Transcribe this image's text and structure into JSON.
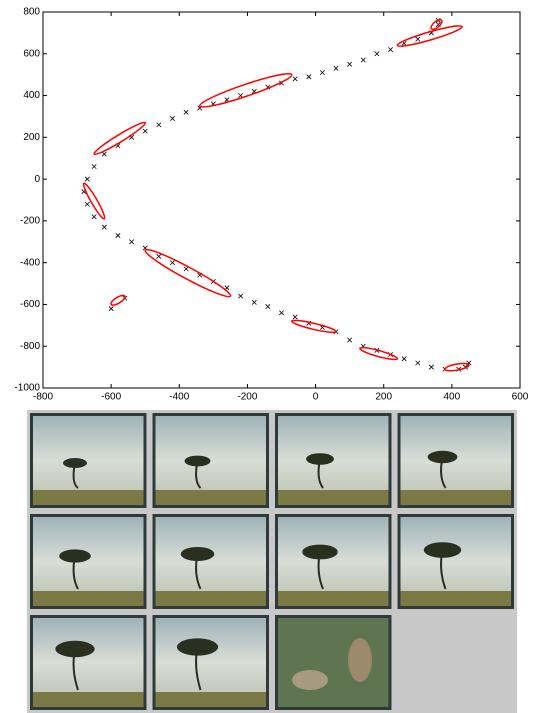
{
  "chart_data": {
    "type": "scatter",
    "xlim": [
      -800,
      600
    ],
    "ylim": [
      -1000,
      800
    ],
    "xticks": [
      -800,
      -600,
      -400,
      -200,
      0,
      200,
      400,
      600
    ],
    "yticks": [
      -1000,
      -800,
      -600,
      -400,
      -200,
      0,
      200,
      400,
      600,
      800
    ],
    "series": [
      {
        "color": "#000000",
        "x": [
          340,
          300,
          260,
          220,
          180,
          140,
          100,
          60,
          20,
          -20,
          -60,
          -100,
          -140,
          -180,
          -220,
          -260,
          -300,
          -340,
          -380,
          -420,
          -460,
          -500,
          -540,
          -580,
          -620,
          -650,
          -670,
          -680,
          -670,
          -650,
          -620,
          -580,
          -540,
          -500,
          -460,
          -420,
          -380,
          -340,
          -300,
          -260,
          -220,
          -180,
          -140,
          -100,
          -60,
          -20,
          20,
          60,
          100,
          140,
          180,
          220,
          260,
          300,
          340,
          380,
          420,
          450,
          440,
          360,
          360,
          -600,
          -560
        ],
        "values": [
          700,
          670,
          650,
          620,
          600,
          570,
          550,
          530,
          510,
          490,
          480,
          460,
          440,
          420,
          400,
          380,
          360,
          340,
          320,
          290,
          260,
          230,
          200,
          160,
          120,
          60,
          0,
          -60,
          -120,
          -180,
          -230,
          -270,
          -300,
          -330,
          -370,
          -400,
          -430,
          -460,
          -490,
          -520,
          -560,
          -590,
          -610,
          -640,
          -660,
          -690,
          -710,
          -730,
          -770,
          -800,
          -820,
          -840,
          -860,
          -880,
          -900,
          -910,
          -910,
          -880,
          -900,
          760,
          740,
          -620,
          -570
        ]
      }
    ],
    "ellipses": {
      "color": "#ff0000",
      "items": [
        {
          "x": [
            240,
            430
          ],
          "y": [
            640,
            730
          ]
        },
        {
          "x": [
            -340,
            -70
          ],
          "y": [
            350,
            500
          ]
        },
        {
          "x": [
            -650,
            -500
          ],
          "y": [
            120,
            270
          ]
        },
        {
          "x": [
            -680,
            -620
          ],
          "y": [
            -20,
            -190
          ]
        },
        {
          "x": [
            -500,
            -250
          ],
          "y": [
            -340,
            -560
          ]
        },
        {
          "x": [
            -600,
            -560
          ],
          "y": [
            -600,
            -560
          ]
        },
        {
          "x": [
            -70,
            60
          ],
          "y": [
            -680,
            -730
          ]
        },
        {
          "x": [
            130,
            240
          ],
          "y": [
            -810,
            -860
          ]
        },
        {
          "x": [
            380,
            450
          ],
          "y": [
            -910,
            -890
          ]
        },
        {
          "x": [
            340,
            370
          ],
          "y": [
            720,
            760
          ]
        }
      ]
    }
  }
}
